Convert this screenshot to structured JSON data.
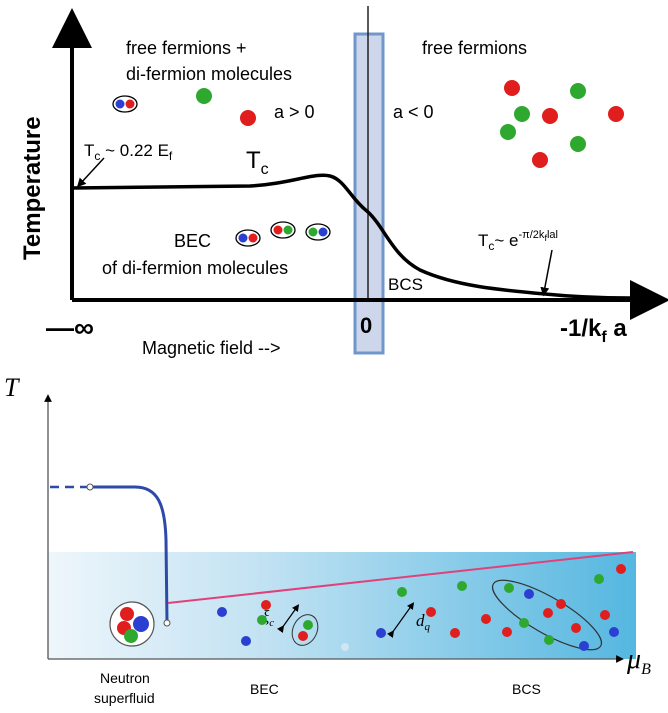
{
  "top": {
    "y_axis_label": "Temperature",
    "x_left_label": "—∞",
    "x_mid_label": "Magnetic field -->",
    "x_zero_label": "0",
    "x_right_label": "-1/k",
    "x_right_sub": "f",
    "x_right_tail": " a",
    "region_bec_header_1": "free fermions +",
    "region_bec_header_2": "di-fermion molecules",
    "region_bcs_header": "free fermions",
    "a_positive": "a > 0",
    "a_negative": "a < 0",
    "tc_label": "T",
    "tc_label_sub": "c",
    "tc_left_annot": "T",
    "tc_left_annot_sub": "c",
    "tc_left_annot_tail": " ~ 0.22 E",
    "tc_left_annot_sub2": "f",
    "tc_right_annot": "T",
    "tc_right_annot_sub": "c",
    "tc_right_annot_tail": "~ e",
    "tc_right_annot_sup": "-π/2k",
    "tc_right_annot_sup_sub": "f",
    "tc_right_annot_sup_tail": "lal",
    "bec_label_1": "BEC",
    "bec_label_2": "of di-fermion molecules",
    "bcs_label": "BCS",
    "colors": {
      "red": "#e01e1e",
      "green": "#2ea82e",
      "blue": "#2b3fd0",
      "highlight_fill": "#cdd6ea",
      "highlight_stroke": "#6f97cc"
    }
  },
  "bottom": {
    "y_axis_label": "T",
    "x_axis_label": "μ",
    "x_axis_sub": "B",
    "neutron_label_1": "Neutron",
    "neutron_label_2": "superfluid",
    "bec_label": "BEC",
    "bcs_label": "BCS",
    "xi_label": "ξ",
    "xi_sub": "c",
    "dq_label": "d",
    "dq_sub": "q",
    "colors": {
      "curve": "#2e4aa8",
      "line": "#e0417a",
      "band_left": "#eef6fb",
      "band_right": "#55b7e0"
    }
  }
}
